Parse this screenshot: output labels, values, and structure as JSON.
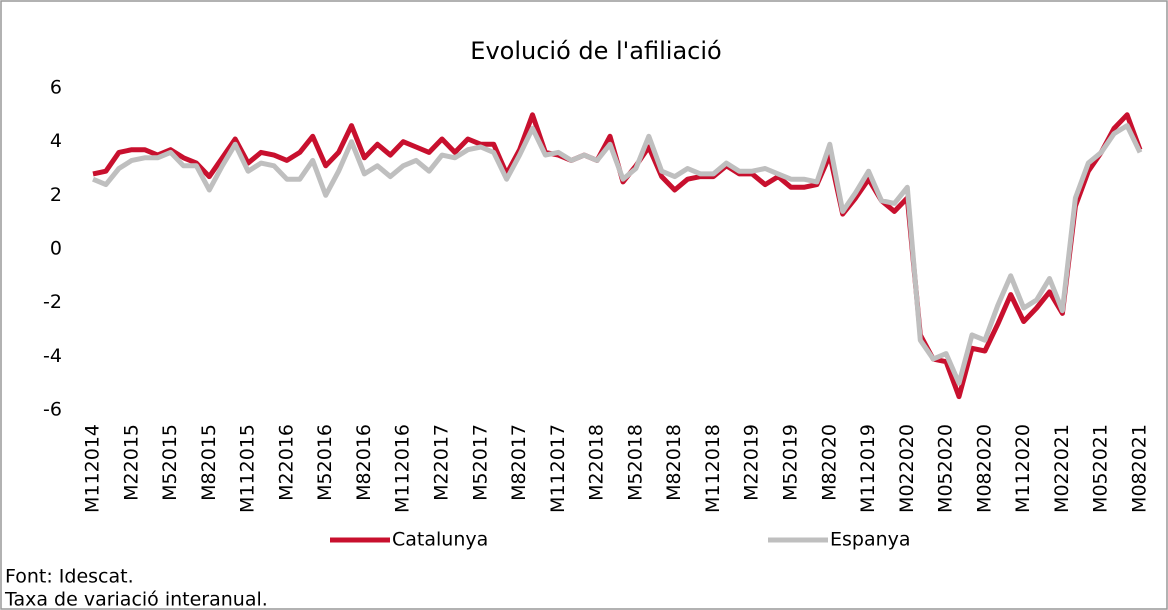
{
  "chart_data": {
    "type": "line",
    "title": "Evolució de l'afiliació",
    "categories": [
      "M112014",
      null,
      null,
      "M22015",
      null,
      null,
      "M52015",
      null,
      null,
      "M82015",
      null,
      null,
      "M112015",
      null,
      null,
      "M22016",
      null,
      null,
      "M52016",
      null,
      null,
      "M82016",
      null,
      null,
      "M112016",
      null,
      null,
      "M22017",
      null,
      null,
      "M52017",
      null,
      null,
      "M82017",
      null,
      null,
      "M112017",
      null,
      null,
      "M22018",
      null,
      null,
      "M52018",
      null,
      null,
      "M82018",
      null,
      null,
      "M112018",
      null,
      null,
      "M22019",
      null,
      null,
      "M52019",
      null,
      null,
      "M82020",
      null,
      null,
      "M112019",
      null,
      null,
      "M022020",
      null,
      null,
      "M052020",
      null,
      null,
      "M082020",
      null,
      null,
      "M112020",
      null,
      null,
      "M022021",
      null,
      null,
      "M052021",
      null,
      null,
      "M082021"
    ],
    "series": [
      {
        "name": "Catalunya",
        "color": "#c8102e",
        "values": [
          2.8,
          2.9,
          3.6,
          3.7,
          3.7,
          3.5,
          3.7,
          3.4,
          3.2,
          2.7,
          3.4,
          4.1,
          3.2,
          3.6,
          3.5,
          3.3,
          3.6,
          4.2,
          3.1,
          3.6,
          4.6,
          3.4,
          3.9,
          3.5,
          4.0,
          3.8,
          3.6,
          4.1,
          3.6,
          4.1,
          3.9,
          3.9,
          2.8,
          3.7,
          5.0,
          3.6,
          3.5,
          3.3,
          3.5,
          3.3,
          4.2,
          2.5,
          3.1,
          3.8,
          2.7,
          2.2,
          2.6,
          2.7,
          2.7,
          3.1,
          2.8,
          2.8,
          2.4,
          2.7,
          2.3,
          2.3,
          2.4,
          3.5,
          1.3,
          1.9,
          2.6,
          1.8,
          1.4,
          1.9,
          -3.2,
          -4.1,
          -4.2,
          -5.5,
          -3.7,
          -3.8,
          -2.8,
          -1.7,
          -2.7,
          -2.2,
          -1.6,
          -2.4,
          1.6,
          2.9,
          3.6,
          4.5,
          5.0,
          3.7
        ]
      },
      {
        "name": "Espanya",
        "color": "#bfbfbf",
        "values": [
          2.6,
          2.4,
          3.0,
          3.3,
          3.4,
          3.4,
          3.6,
          3.1,
          3.1,
          2.2,
          3.1,
          3.9,
          2.9,
          3.2,
          3.1,
          2.6,
          2.6,
          3.3,
          2.0,
          2.9,
          4.0,
          2.8,
          3.1,
          2.7,
          3.1,
          3.3,
          2.9,
          3.5,
          3.4,
          3.7,
          3.8,
          3.6,
          2.6,
          3.5,
          4.5,
          3.5,
          3.6,
          3.3,
          3.5,
          3.3,
          3.9,
          2.6,
          3.0,
          4.2,
          2.9,
          2.7,
          3.0,
          2.8,
          2.8,
          3.2,
          2.9,
          2.9,
          3.0,
          2.8,
          2.6,
          2.6,
          2.5,
          3.9,
          1.4,
          2.1,
          2.9,
          1.8,
          1.7,
          2.3,
          -3.4,
          -4.1,
          -3.9,
          -5.0,
          -3.2,
          -3.4,
          -2.1,
          -1.0,
          -2.2,
          -1.9,
          -1.1,
          -2.3,
          1.9,
          3.2,
          3.6,
          4.3,
          4.6,
          3.6
        ]
      }
    ],
    "ylim": [
      -6,
      6
    ],
    "yticks": [
      -6,
      -4,
      -2,
      0,
      2,
      4,
      6
    ],
    "grid": false,
    "legend": "bottom",
    "notes": [
      "Font: Idescat.",
      "Taxa de variació interanual."
    ]
  }
}
